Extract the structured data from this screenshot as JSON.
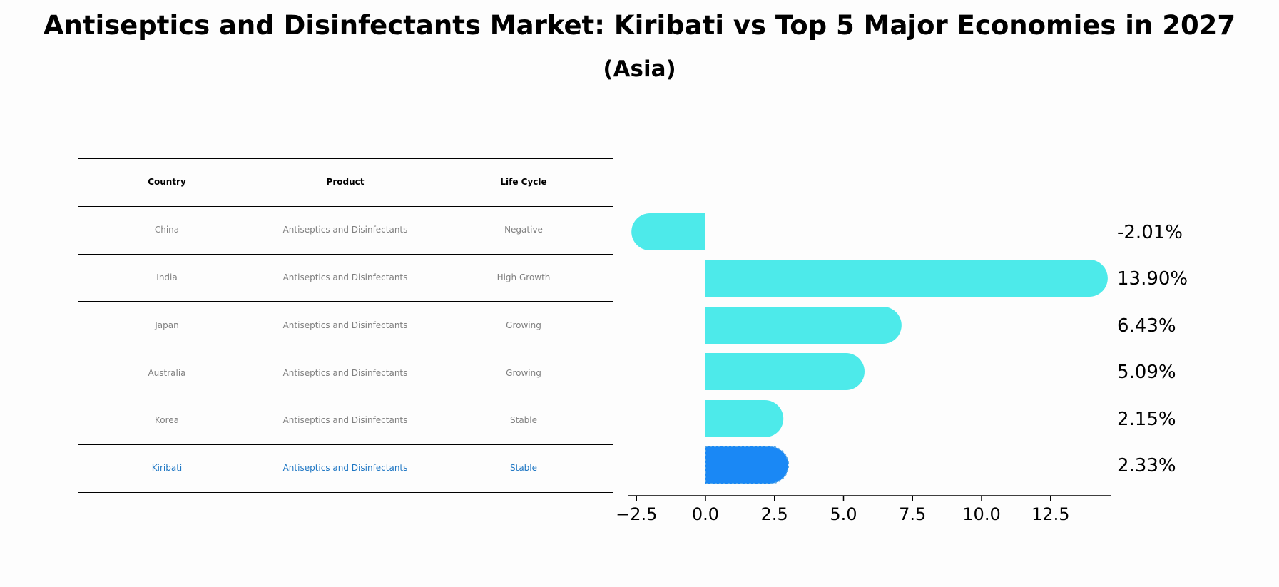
{
  "title": "Antiseptics and Disinfectants Market: Kiribati vs Top 5 Major Economies in 2027",
  "subtitle": "(Asia)",
  "table": {
    "headers": [
      "Country",
      "Product",
      "Life Cycle"
    ],
    "rows": [
      {
        "country": "China",
        "product": "Antiseptics and Disinfectants",
        "lifecycle": "Negative"
      },
      {
        "country": "India",
        "product": "Antiseptics and Disinfectants",
        "lifecycle": "High Growth"
      },
      {
        "country": "Japan",
        "product": "Antiseptics and Disinfectants",
        "lifecycle": "Growing"
      },
      {
        "country": "Australia",
        "product": "Antiseptics and Disinfectants",
        "lifecycle": "Growing"
      },
      {
        "country": "Korea",
        "product": "Antiseptics and Disinfectants",
        "lifecycle": "Stable"
      },
      {
        "country": "Kiribati",
        "product": "Antiseptics and Disinfectants",
        "lifecycle": "Stable"
      }
    ]
  },
  "colors": {
    "bar": "#4deaea",
    "highlight_bar": "#1a88f5",
    "highlight_text": "#1f77c4",
    "muted_text": "#808080"
  },
  "chart_data": {
    "type": "bar",
    "orientation": "horizontal",
    "categories": [
      "China",
      "India",
      "Japan",
      "Australia",
      "Korea",
      "Kiribati"
    ],
    "values": [
      -2.01,
      13.9,
      6.43,
      5.09,
      2.15,
      2.33
    ],
    "value_labels": [
      "-2.01%",
      "13.90%",
      "6.43%",
      "5.09%",
      "2.15%",
      "2.33%"
    ],
    "highlight": "Kiribati",
    "xlim": [
      -2.8,
      14.6
    ],
    "xticks": [
      -2.5,
      0.0,
      2.5,
      5.0,
      7.5,
      10.0,
      12.5
    ],
    "xtick_labels": [
      "−2.5",
      "0.0",
      "2.5",
      "5.0",
      "7.5",
      "10.0",
      "12.5"
    ],
    "ylabel": "",
    "xlabel": ""
  }
}
